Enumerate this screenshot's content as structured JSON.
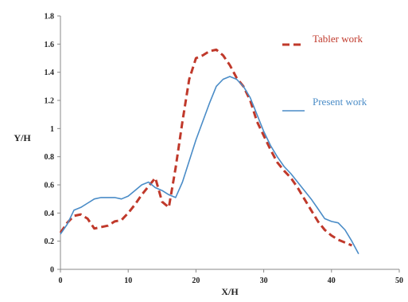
{
  "chart_data": {
    "type": "line",
    "xlabel": "X/H",
    "ylabel": "Y/H",
    "xlim": [
      0,
      50
    ],
    "ylim": [
      0,
      1.8
    ],
    "x_ticks": [
      0,
      10,
      20,
      30,
      40,
      50
    ],
    "y_ticks": [
      0,
      0.2,
      0.4,
      0.6,
      0.8,
      1,
      1.2,
      1.4,
      1.6,
      1.8
    ],
    "grid": false,
    "legend_position": "right",
    "series": [
      {
        "name": "Tabler work",
        "color": "#c0392b",
        "style": "dashed",
        "x": [
          0,
          1,
          2,
          3,
          4,
          5,
          6,
          7,
          8,
          9,
          10,
          11,
          12,
          13,
          14,
          15,
          16,
          17,
          18,
          19,
          20,
          21,
          22,
          23,
          24,
          25,
          26,
          27,
          28,
          29,
          30,
          31,
          32,
          33,
          34,
          35,
          36,
          37,
          38,
          39,
          40,
          41,
          42,
          43
        ],
        "y": [
          0.26,
          0.33,
          0.38,
          0.39,
          0.36,
          0.29,
          0.3,
          0.31,
          0.34,
          0.35,
          0.4,
          0.46,
          0.53,
          0.59,
          0.65,
          0.48,
          0.44,
          0.72,
          1.05,
          1.35,
          1.5,
          1.52,
          1.55,
          1.56,
          1.52,
          1.45,
          1.36,
          1.3,
          1.2,
          1.05,
          0.95,
          0.85,
          0.76,
          0.7,
          0.65,
          0.58,
          0.5,
          0.42,
          0.34,
          0.28,
          0.24,
          0.21,
          0.19,
          0.17
        ]
      },
      {
        "name": "Present work",
        "color": "#4a8cc7",
        "style": "solid",
        "x": [
          0,
          1,
          2,
          3,
          4,
          5,
          6,
          7,
          8,
          9,
          10,
          11,
          12,
          13,
          14,
          15,
          16,
          17,
          18,
          19,
          20,
          21,
          22,
          23,
          24,
          25,
          26,
          27,
          28,
          29,
          30,
          31,
          32,
          33,
          34,
          35,
          36,
          37,
          38,
          39,
          40,
          41,
          42,
          43,
          44
        ],
        "y": [
          0.25,
          0.32,
          0.42,
          0.44,
          0.47,
          0.5,
          0.51,
          0.51,
          0.51,
          0.5,
          0.52,
          0.56,
          0.6,
          0.62,
          0.58,
          0.56,
          0.53,
          0.51,
          0.62,
          0.77,
          0.92,
          1.05,
          1.18,
          1.3,
          1.35,
          1.37,
          1.35,
          1.3,
          1.22,
          1.1,
          0.98,
          0.88,
          0.8,
          0.73,
          0.68,
          0.62,
          0.56,
          0.5,
          0.43,
          0.36,
          0.34,
          0.33,
          0.28,
          0.2,
          0.11
        ]
      }
    ]
  }
}
